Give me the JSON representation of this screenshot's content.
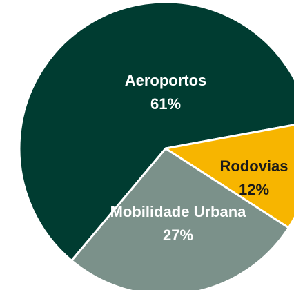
{
  "chart_data": {
    "type": "pie",
    "categories": [
      "Aeroportos",
      "Rodovias",
      "Mobilidade Urbana"
    ],
    "values": [
      61,
      12,
      27
    ],
    "value_labels": [
      "61%",
      "12%",
      "27%"
    ],
    "colors": [
      "#003c31",
      "#f7b500",
      "#7b918a"
    ],
    "label_colors": [
      "#ffffff",
      "#1a1a1a",
      "#ffffff"
    ]
  }
}
